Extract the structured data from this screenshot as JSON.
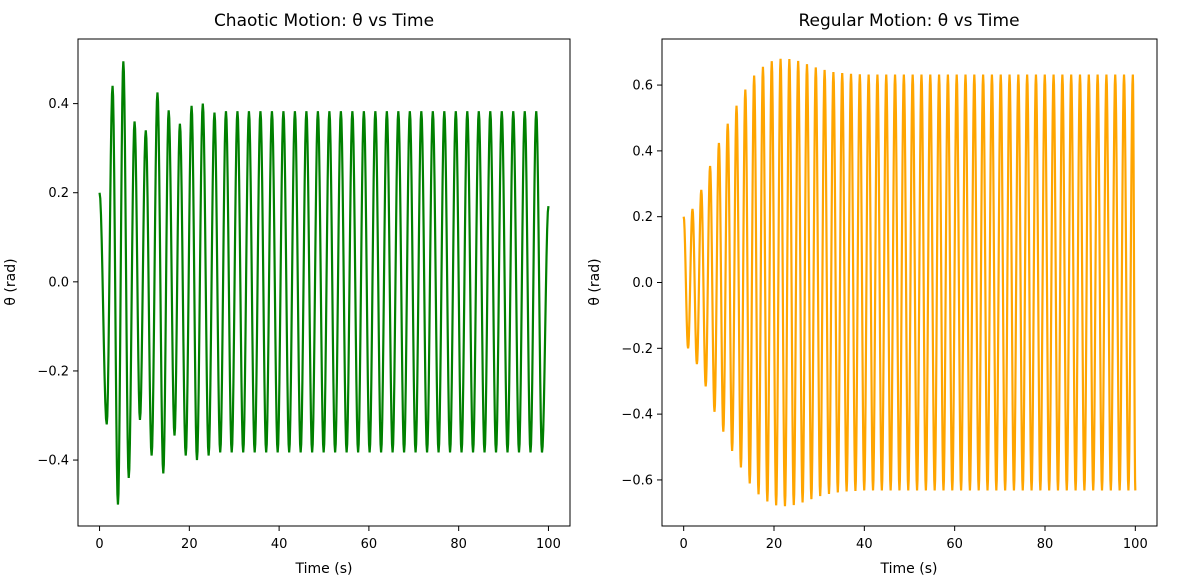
{
  "chart_data": [
    {
      "type": "line",
      "title": "Chaotic Motion: θ vs Time",
      "xlabel": "Time (s)",
      "ylabel": "θ (rad)",
      "xlim": [
        -4.8,
        104.8
      ],
      "ylim": [
        -0.548,
        0.545
      ],
      "xticks": [
        0,
        20,
        40,
        60,
        80,
        100
      ],
      "xtick_labels": [
        "0",
        "20",
        "40",
        "60",
        "80",
        "100"
      ],
      "yticks": [
        -0.4,
        -0.2,
        0.0,
        0.2,
        0.4
      ],
      "ytick_labels": [
        "−0.4",
        "−0.2",
        "0.0",
        "0.2",
        "0.4"
      ],
      "color": "#008000",
      "series": [
        {
          "period": 2.56,
          "t_range": [
            0,
            100
          ],
          "initial": 0.2,
          "peaks": [
            [
              1.6,
              -0.32
            ],
            [
              2.9,
              0.44
            ],
            [
              4.1,
              -0.5
            ],
            [
              5.3,
              0.495
            ],
            [
              6.5,
              -0.44
            ],
            [
              7.8,
              0.36
            ],
            [
              9.0,
              -0.31
            ],
            [
              10.3,
              0.34
            ],
            [
              11.6,
              -0.39
            ],
            [
              12.9,
              0.425
            ],
            [
              14.2,
              -0.43
            ],
            [
              15.4,
              0.385
            ],
            [
              16.7,
              -0.345
            ],
            [
              17.9,
              0.355
            ],
            [
              19.2,
              -0.39
            ],
            [
              20.5,
              0.395
            ],
            [
              21.7,
              -0.4
            ],
            [
              23.0,
              0.4
            ],
            [
              24.3,
              -0.39
            ],
            [
              25.6,
              0.38
            ]
          ],
          "steady_amplitude": 0.383,
          "end_value": 0.17
        }
      ]
    },
    {
      "type": "line",
      "title": "Regular Motion: θ vs Time",
      "xlabel": "Time (s)",
      "ylabel": "θ (rad)",
      "xlim": [
        -4.8,
        104.8
      ],
      "ylim": [
        -0.74,
        0.74
      ],
      "xticks": [
        0,
        20,
        40,
        60,
        80,
        100
      ],
      "xtick_labels": [
        "0",
        "20",
        "40",
        "60",
        "80",
        "100"
      ],
      "yticks": [
        -0.6,
        -0.4,
        -0.2,
        0.0,
        0.2,
        0.4,
        0.6
      ],
      "ytick_labels": [
        "−0.6",
        "−0.4",
        "−0.2",
        "0.0",
        "0.2",
        "0.4",
        "0.6"
      ],
      "color": "#ffa500",
      "series": [
        {
          "period": 1.95,
          "t_range": [
            0,
            100
          ],
          "initial": 0.2,
          "amplitude_profile": [
            [
              0,
              0.2
            ],
            [
              1,
              0.2
            ],
            [
              3,
              0.25
            ],
            [
              5,
              0.32
            ],
            [
              7,
              0.4
            ],
            [
              9,
              0.46
            ],
            [
              11,
              0.52
            ],
            [
              13,
              0.57
            ],
            [
              15,
              0.62
            ],
            [
              17,
              0.65
            ],
            [
              19,
              0.67
            ],
            [
              21,
              0.68
            ],
            [
              23,
              0.68
            ],
            [
              25,
              0.675
            ],
            [
              27,
              0.665
            ],
            [
              30,
              0.65
            ],
            [
              33,
              0.64
            ],
            [
              36,
              0.635
            ],
            [
              40,
              0.632
            ],
            [
              45,
              0.632
            ],
            [
              100,
              0.632
            ]
          ],
          "end_value": -0.632
        }
      ]
    }
  ]
}
